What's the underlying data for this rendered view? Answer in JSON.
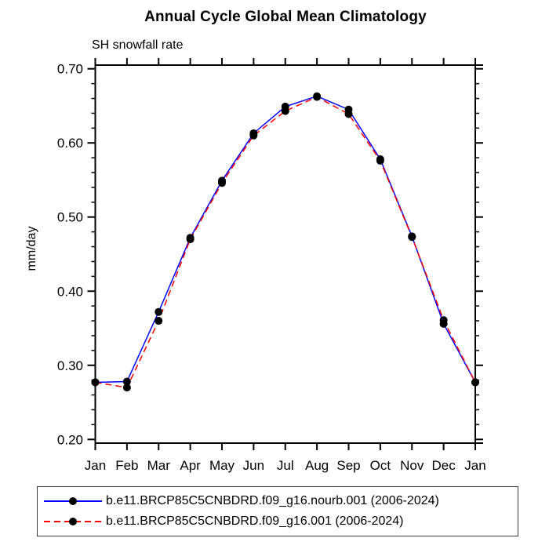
{
  "title": "Annual Cycle Global Mean Climatology",
  "subtitle": "SH snowfall rate",
  "ylabel": "mm/day",
  "colors": {
    "series1": "#0000ff",
    "series2": "#ff0000",
    "marker": "#000000",
    "axis": "#000000"
  },
  "legend": {
    "entries": [
      {
        "label": "b.e11.BRCP85C5CNBDRD.f09_g16.nourb.001 (2006-2024)",
        "color": "#0000ff",
        "style": "solid"
      },
      {
        "label": "b.e11.BRCP85C5CNBDRD.f09_g16.001 (2006-2024)",
        "color": "#ff0000",
        "style": "dashed"
      }
    ]
  },
  "chart_data": {
    "type": "line",
    "title": "Annual Cycle Global Mean Climatology",
    "subtitle": "SH snowfall rate",
    "xlabel": "",
    "ylabel": "mm/day",
    "categories": [
      "Jan",
      "Feb",
      "Mar",
      "Apr",
      "May",
      "Jun",
      "Jul",
      "Aug",
      "Sep",
      "Oct",
      "Nov",
      "Dec",
      "Jan"
    ],
    "series": [
      {
        "name": "b.e11.BRCP85C5CNBDRD.f09_g16.nourb.001 (2006-2024)",
        "color": "#0000ff",
        "line_style": "solid",
        "marker": "filled-circle",
        "marker_color": "#000000",
        "values": [
          0.277,
          0.278,
          0.372,
          0.472,
          0.549,
          0.613,
          0.649,
          0.663,
          0.645,
          0.578,
          0.474,
          0.356,
          0.277
        ]
      },
      {
        "name": "b.e11.BRCP85C5CNBDRD.f09_g16.001 (2006-2024)",
        "color": "#ff0000",
        "line_style": "dashed",
        "marker": "filled-circle",
        "marker_color": "#000000",
        "values": [
          0.277,
          0.27,
          0.36,
          0.47,
          0.546,
          0.61,
          0.643,
          0.662,
          0.639,
          0.576,
          0.473,
          0.361,
          0.277
        ]
      }
    ],
    "ylim": [
      0.195,
      0.705
    ],
    "yticks_major": [
      0.2,
      0.3,
      0.4,
      0.5,
      0.6,
      0.7
    ],
    "ytick_labels": [
      "0.20",
      "0.30",
      "0.40",
      "0.50",
      "0.60",
      "0.70"
    ],
    "minor_tick_step": 0.02,
    "grid": false,
    "legend_position": "bottom"
  }
}
